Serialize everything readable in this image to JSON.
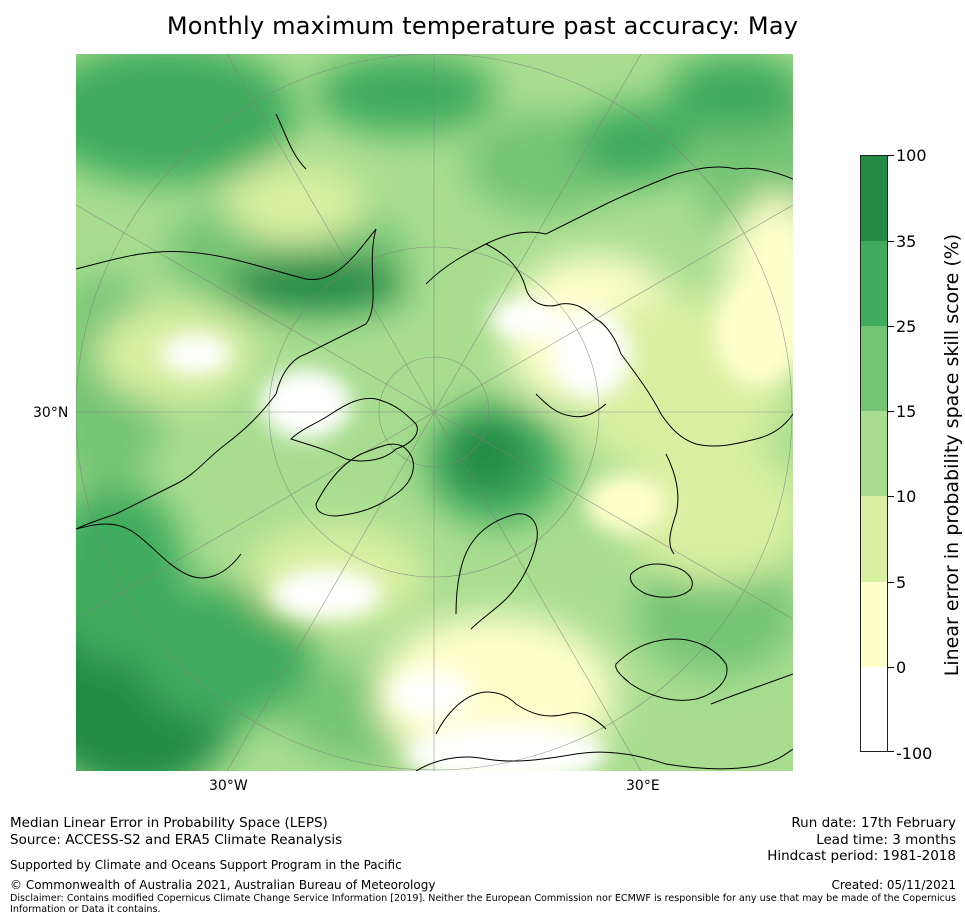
{
  "title": "Monthly maximum temperature past accuracy: May",
  "graticule_labels": {
    "lat": "30°N",
    "lon_west": "30°W",
    "lon_east": "30°E"
  },
  "colorbar": {
    "title": "Linear error in probability space skill score (%)",
    "tick_labels": [
      "100",
      "35",
      "25",
      "15",
      "10",
      "5",
      "0",
      "-100"
    ],
    "classes": [
      {
        "range": "35 to 100",
        "color": "#238b45"
      },
      {
        "range": "25 to 35",
        "color": "#41ab5d"
      },
      {
        "range": "15 to 25",
        "color": "#74c476"
      },
      {
        "range": "10 to 15",
        "color": "#a8dd8f"
      },
      {
        "range": "5 to 10",
        "color": "#d9f0a3"
      },
      {
        "range": "0 to 5",
        "color": "#ffffcc"
      },
      {
        "range": "-100 to 0",
        "color": "#ffffff"
      }
    ]
  },
  "colors": {
    "coastline": "#000000",
    "graticule": "#7f7f7f"
  },
  "footer": {
    "left_line1": "Median Linear Error in Probability Space (LEPS)",
    "left_line2": "Source: ACCESS-S2 and ERA5 Climate Reanalysis",
    "support": "Supported by Climate and Oceans Support Program in the Pacific",
    "copyright": "© Commonwealth of Australia 2021, Australian Bureau of Meteorology",
    "disclaimer_line1": "Disclaimer: Contains modified Copernicus Climate Change Service Information [2019]. Neither the European Commission nor ECMWF is responsible for any use that may be made of the Copernicus",
    "disclaimer_line2": "Information or Data it contains.",
    "run_date": "Run date: 17th February",
    "lead_time": "Lead time: 3 months",
    "hindcast": "Hindcast period: 1981-2018",
    "created": "Created: 05/11/2021"
  }
}
